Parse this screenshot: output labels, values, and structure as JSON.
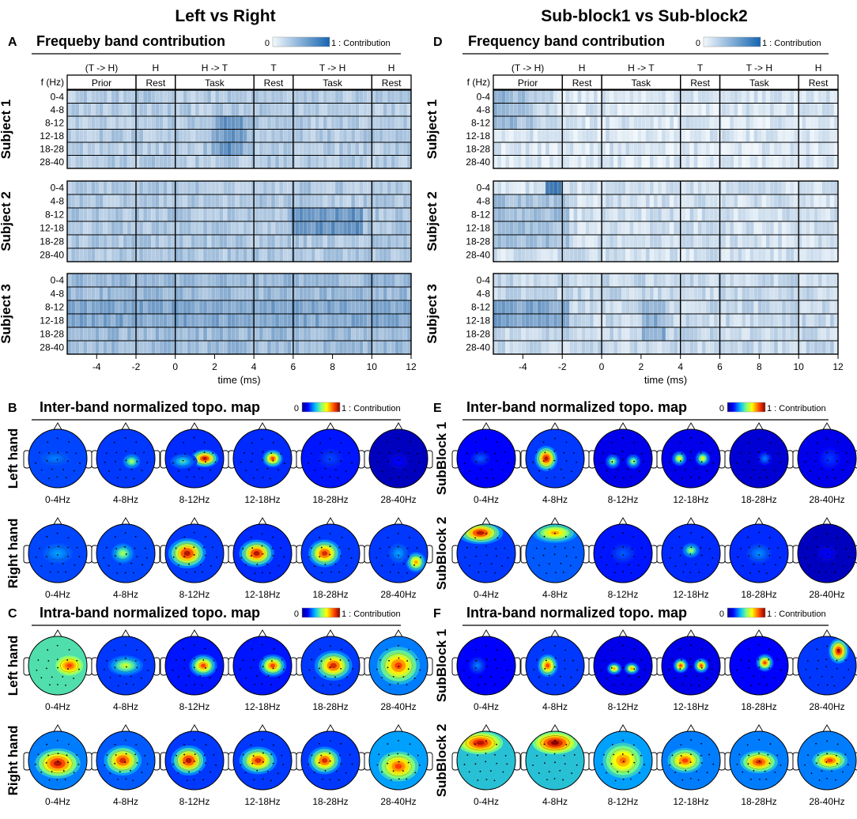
{
  "columns": [
    {
      "title": "Left vs Right"
    },
    {
      "title": "Sub-block1 vs Sub-block2"
    }
  ],
  "panels": {
    "A": {
      "letter": "A",
      "title": "Frequeby band contribution"
    },
    "B": {
      "letter": "B",
      "title": "Inter-band normalized topo. map"
    },
    "C": {
      "letter": "C",
      "title": "Intra-band normalized topo. map"
    },
    "D": {
      "letter": "D",
      "title": "Frequency band contribution"
    },
    "E": {
      "letter": "E",
      "title": "Inter-band normalized topo. map"
    },
    "F": {
      "letter": "F",
      "title": "Intra-band normalized topo. map"
    }
  },
  "colorbar": {
    "min_label": "0",
    "max_label": "1 : Contribution"
  },
  "heatmap": {
    "conditions": [
      "(T -> H)",
      "H",
      "H -> T",
      "T",
      "T -> H",
      "H"
    ],
    "phases": [
      "Prior",
      "Rest",
      "Task",
      "Rest",
      "Task",
      "Rest"
    ],
    "freq_axis_label": "f (Hz)",
    "bands": [
      "0-4",
      "4-8",
      "8-12",
      "12-18",
      "18-28",
      "28-40"
    ],
    "subjects": [
      "Subject 1",
      "Subject 2",
      "Subject 3"
    ],
    "x_ticks": [
      "-4",
      "-2",
      "0",
      "2",
      "4",
      "6",
      "8",
      "10",
      "12"
    ],
    "x_tick_values": [
      -4,
      -2,
      0,
      2,
      4,
      6,
      8,
      10,
      12
    ],
    "x_range": [
      -5.5,
      12
    ],
    "phase_boundaries": [
      -2,
      0,
      4,
      6,
      10
    ],
    "xlabel": "time (ms)"
  },
  "topo": {
    "freq_labels": [
      "0-4Hz",
      "4-8Hz",
      "8-12Hz",
      "12-18Hz",
      "18-28Hz",
      "28-40Hz"
    ],
    "left_rows": [
      "Left hand",
      "Right hand"
    ],
    "right_rows": [
      "SubBlock 1",
      "SubBlock 2"
    ]
  },
  "colors": {
    "heat_low": "#f2f8fd",
    "heat_high": "#08519c",
    "jet": [
      "#00007f",
      "#0000ff",
      "#007fff",
      "#00ffff",
      "#7fff7f",
      "#ffff00",
      "#ff7f00",
      "#ff0000",
      "#7f0000"
    ]
  },
  "chart_data": [
    {
      "type": "heatmap",
      "title": "Frequeby band contribution",
      "xlabel": "time (ms)",
      "ylabel": "f (Hz)",
      "categories": [
        "0-4",
        "4-8",
        "8-12",
        "12-18",
        "18-28",
        "28-40"
      ],
      "series": [
        {
          "name": "Subject 1"
        },
        {
          "name": "Subject 2"
        },
        {
          "name": "Subject 3"
        }
      ],
      "x_ticks": [
        -4,
        -2,
        0,
        2,
        4,
        6,
        8,
        10,
        12
      ]
    },
    {
      "type": "heatmap",
      "title": "Frequency band contribution",
      "xlabel": "time (ms)",
      "ylabel": "f (Hz)",
      "categories": [
        "0-4",
        "4-8",
        "8-12",
        "12-18",
        "18-28",
        "28-40"
      ],
      "series": [
        {
          "name": "Subject 1"
        },
        {
          "name": "Subject 2"
        },
        {
          "name": "Subject 3"
        }
      ],
      "x_ticks": [
        -4,
        -2,
        0,
        2,
        4,
        6,
        8,
        10,
        12
      ]
    }
  ]
}
